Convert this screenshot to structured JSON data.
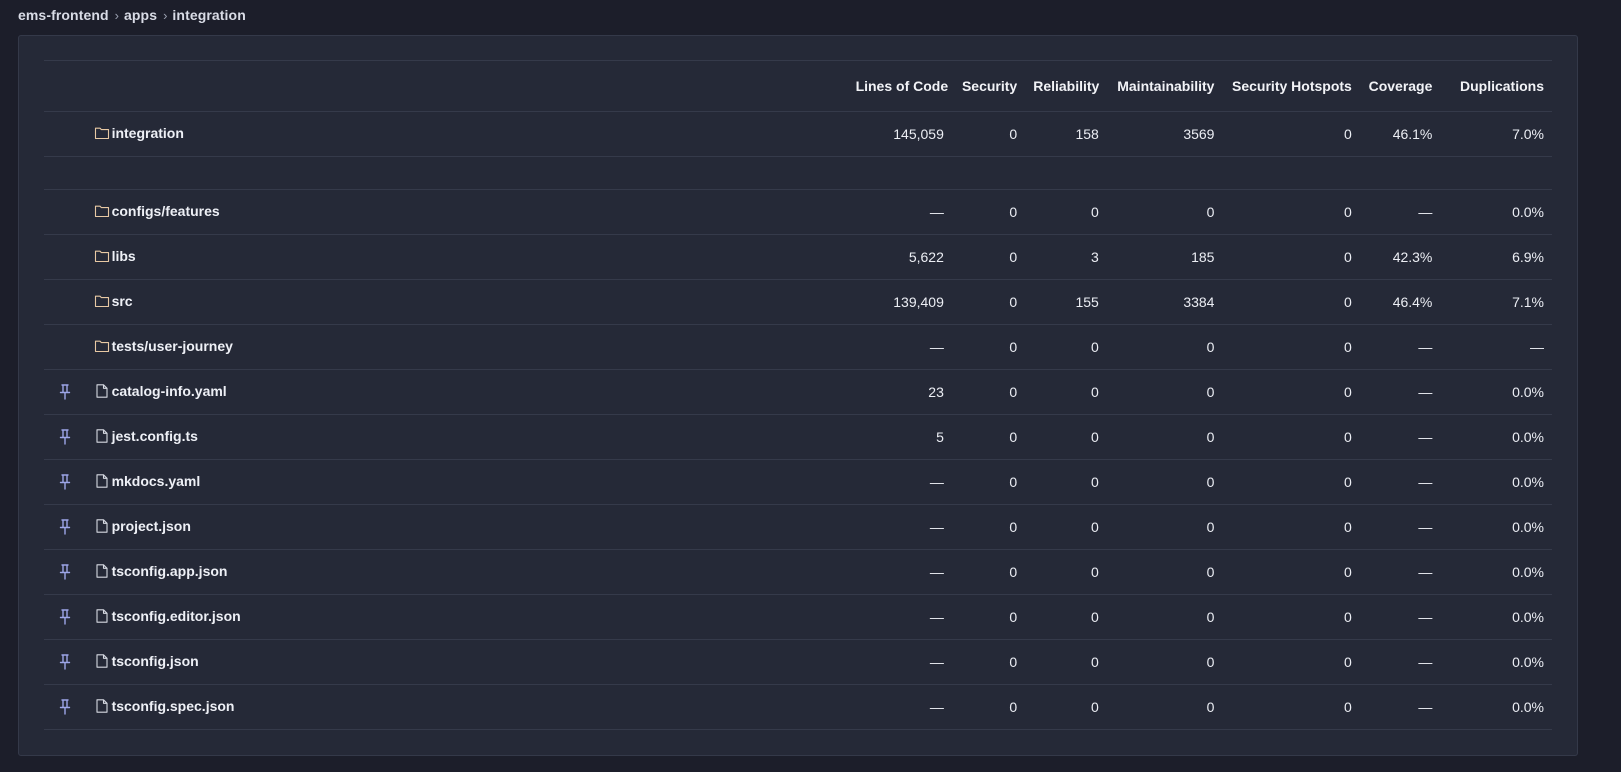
{
  "breadcrumb": {
    "items": [
      "ems-frontend",
      "apps",
      "integration"
    ]
  },
  "colors": {
    "folder_icon": "#e8c9a4",
    "file_icon": "#d6d9e2",
    "pin_icon": "#9da6e8"
  },
  "table": {
    "headers": [
      "Lines of Code",
      "Security",
      "Reliability",
      "Maintainability",
      "Security Hotspots",
      "Coverage",
      "Duplications"
    ],
    "summary": {
      "name": "integration",
      "icon": "folder-icon",
      "values": [
        "145,059",
        "0",
        "158",
        "3569",
        "0",
        "46.1%",
        "7.0%"
      ]
    },
    "rows": [
      {
        "name": "configs/features",
        "icon": "folder-icon",
        "pinned": false,
        "values": [
          "—",
          "0",
          "0",
          "0",
          "0",
          "—",
          "0.0%"
        ]
      },
      {
        "name": "libs",
        "icon": "folder-icon",
        "pinned": false,
        "values": [
          "5,622",
          "0",
          "3",
          "185",
          "0",
          "42.3%",
          "6.9%"
        ]
      },
      {
        "name": "src",
        "icon": "folder-icon",
        "pinned": false,
        "values": [
          "139,409",
          "0",
          "155",
          "3384",
          "0",
          "46.4%",
          "7.1%"
        ]
      },
      {
        "name": "tests/user-journey",
        "icon": "folder-icon",
        "pinned": false,
        "values": [
          "—",
          "0",
          "0",
          "0",
          "0",
          "—",
          "—"
        ]
      },
      {
        "name": "catalog-info.yaml",
        "icon": "file-icon",
        "pinned": true,
        "values": [
          "23",
          "0",
          "0",
          "0",
          "0",
          "—",
          "0.0%"
        ]
      },
      {
        "name": "jest.config.ts",
        "icon": "file-icon",
        "pinned": true,
        "values": [
          "5",
          "0",
          "0",
          "0",
          "0",
          "—",
          "0.0%"
        ]
      },
      {
        "name": "mkdocs.yaml",
        "icon": "file-icon",
        "pinned": true,
        "values": [
          "—",
          "0",
          "0",
          "0",
          "0",
          "—",
          "0.0%"
        ]
      },
      {
        "name": "project.json",
        "icon": "file-icon",
        "pinned": true,
        "values": [
          "—",
          "0",
          "0",
          "0",
          "0",
          "—",
          "0.0%"
        ]
      },
      {
        "name": "tsconfig.app.json",
        "icon": "file-icon",
        "pinned": true,
        "values": [
          "—",
          "0",
          "0",
          "0",
          "0",
          "—",
          "0.0%"
        ]
      },
      {
        "name": "tsconfig.editor.json",
        "icon": "file-icon",
        "pinned": true,
        "values": [
          "—",
          "0",
          "0",
          "0",
          "0",
          "—",
          "0.0%"
        ]
      },
      {
        "name": "tsconfig.json",
        "icon": "file-icon",
        "pinned": true,
        "values": [
          "—",
          "0",
          "0",
          "0",
          "0",
          "—",
          "0.0%"
        ]
      },
      {
        "name": "tsconfig.spec.json",
        "icon": "file-icon",
        "pinned": true,
        "values": [
          "—",
          "0",
          "0",
          "0",
          "0",
          "—",
          "0.0%"
        ]
      }
    ]
  }
}
